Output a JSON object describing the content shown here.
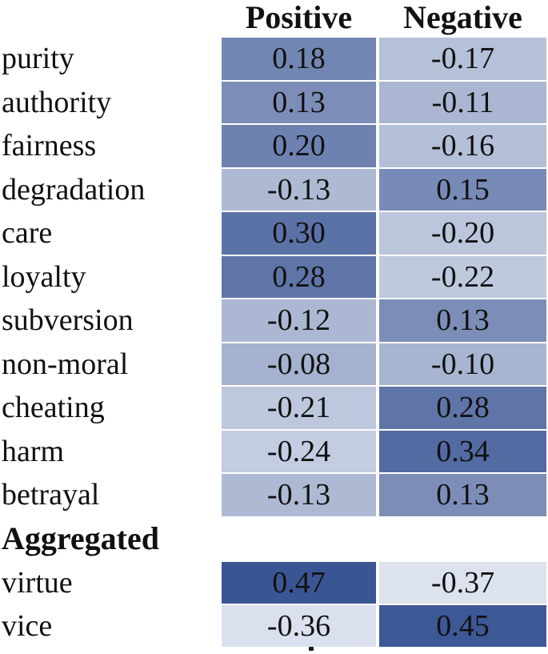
{
  "chart_data": {
    "type": "heatmap",
    "title": "",
    "columns": [
      "Positive",
      "Negative"
    ],
    "rows": [
      "purity",
      "authority",
      "fairness",
      "degradation",
      "care",
      "loyalty",
      "subversion",
      "non-moral",
      "cheating",
      "harm",
      "betrayal"
    ],
    "values": [
      [
        0.18,
        -0.17
      ],
      [
        0.13,
        -0.11
      ],
      [
        0.2,
        -0.16
      ],
      [
        -0.13,
        0.15
      ],
      [
        0.3,
        -0.2
      ],
      [
        0.28,
        -0.22
      ],
      [
        -0.12,
        0.13
      ],
      [
        -0.08,
        -0.1
      ],
      [
        -0.21,
        0.28
      ],
      [
        -0.24,
        0.34
      ],
      [
        -0.13,
        0.13
      ]
    ],
    "section_label": "Aggregated",
    "aggregated_rows": [
      "virtue",
      "vice"
    ],
    "aggregated_values": [
      [
        0.47,
        -0.37
      ],
      [
        -0.36,
        0.45
      ]
    ],
    "value_format_decimals": 2,
    "colormap": {
      "min_value": -0.37,
      "max_value": 0.47,
      "min_color": "#DCE2EE",
      "max_color": "#3A5594"
    },
    "text_color": "#111111",
    "legend_position": "none",
    "grid": false
  },
  "caption_fragment": "."
}
